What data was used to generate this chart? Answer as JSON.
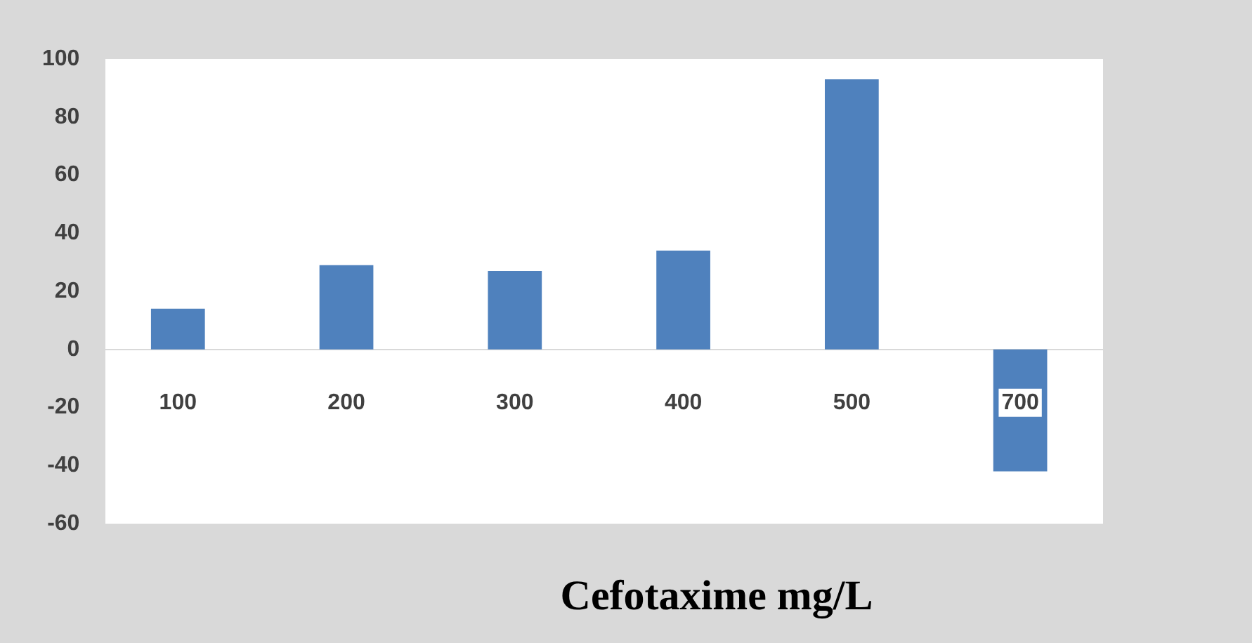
{
  "chart_data": {
    "type": "bar",
    "xlabel": "Cefotaxime mg/L",
    "categories": [
      "100",
      "200",
      "300",
      "400",
      "500",
      "700"
    ],
    "values": [
      14,
      29,
      27,
      34,
      93,
      -42
    ],
    "color": "#4f81bd",
    "ylim": [
      -60,
      100
    ],
    "yticks": [
      -60,
      -40,
      -20,
      0,
      20,
      40,
      60,
      80,
      100
    ],
    "grid": false,
    "legend": false
  }
}
